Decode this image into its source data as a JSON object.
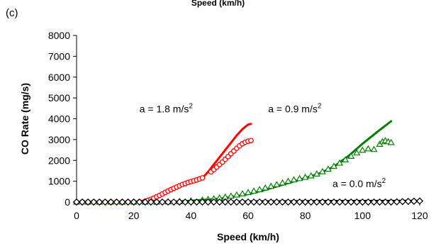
{
  "figure": {
    "top_title": "Speed (km/h)",
    "panel_label": "(c)"
  },
  "chart_data": {
    "type": "scatter",
    "title": "",
    "xlabel": "Speed (km/h)",
    "ylabel": "CO Rate (mg/s)",
    "xlim": [
      0,
      120
    ],
    "ylim": [
      0,
      8000
    ],
    "xticks": [
      0,
      20,
      40,
      60,
      80,
      100,
      120
    ],
    "yticks": [
      0,
      1000,
      2000,
      3000,
      4000,
      5000,
      6000,
      7000,
      8000
    ],
    "grid": false,
    "legend": "none",
    "annotations": [
      {
        "text": "a = 1.8 m/s",
        "sup": "2",
        "x": 22,
        "y": 4300
      },
      {
        "text": "a = 0.9 m/s",
        "sup": "2",
        "x": 67,
        "y": 4300
      },
      {
        "text": "a = 0.0 m/s",
        "sup": "2",
        "x": 89.5,
        "y": 720
      }
    ],
    "series": [
      {
        "label": "a = 1.8 m/s2 model",
        "style": "line",
        "color": "#ff0000",
        "x": [
          0,
          20,
          24,
          28,
          32,
          36,
          40,
          42,
          44,
          46,
          48,
          50,
          52,
          54,
          56,
          58,
          60,
          61
        ],
        "y": [
          0,
          0,
          70,
          230,
          480,
          740,
          960,
          1060,
          1150,
          1450,
          1800,
          2150,
          2500,
          2850,
          3200,
          3500,
          3720,
          3750
        ]
      },
      {
        "label": "a = 1.8 m/s2 data",
        "style": "circle",
        "color": "#ff0000",
        "x": [
          0,
          2,
          4,
          6,
          8,
          10,
          12,
          14,
          16,
          18,
          20,
          22,
          24,
          25,
          26,
          27,
          28,
          29,
          30,
          31,
          32,
          33,
          34,
          35,
          36,
          37,
          38,
          39,
          40,
          41,
          42,
          43,
          44,
          47,
          48,
          49,
          50,
          51,
          52,
          53,
          54,
          55,
          56,
          57,
          58,
          59,
          60,
          61
        ],
        "y": [
          0,
          0,
          0,
          0,
          0,
          0,
          0,
          0,
          0,
          0,
          0,
          10,
          40,
          80,
          130,
          190,
          250,
          320,
          390,
          460,
          530,
          600,
          660,
          720,
          780,
          840,
          890,
          940,
          980,
          1020,
          1060,
          1110,
          1160,
          1450,
          1560,
          1680,
          1800,
          1920,
          2050,
          2180,
          2320,
          2450,
          2580,
          2700,
          2800,
          2870,
          2920,
          2950
        ]
      },
      {
        "label": "a = 0.9 m/s2 model",
        "style": "line",
        "color": "#008000",
        "x": [
          0,
          30,
          40,
          50,
          60,
          65,
          70,
          75,
          80,
          85,
          90,
          95,
          100,
          105,
          110
        ],
        "y": [
          0,
          0,
          60,
          160,
          380,
          550,
          750,
          950,
          1150,
          1380,
          1700,
          2200,
          2800,
          3350,
          3880
        ]
      },
      {
        "label": "a = 0.9 m/s2 data",
        "style": "triangle",
        "color": "#008000",
        "x": [
          0,
          4,
          8,
          12,
          16,
          20,
          24,
          28,
          32,
          36,
          40,
          44,
          46,
          48,
          50,
          52,
          54,
          56,
          58,
          60,
          62,
          64,
          66,
          68,
          70,
          72,
          74,
          76,
          78,
          80,
          82,
          84,
          86,
          88,
          90,
          92,
          94,
          96,
          98,
          100,
          102,
          104,
          106,
          107,
          108,
          109,
          110
        ],
        "y": [
          0,
          0,
          0,
          0,
          0,
          0,
          0,
          0,
          10,
          30,
          60,
          100,
          130,
          160,
          200,
          240,
          290,
          340,
          400,
          460,
          530,
          600,
          680,
          760,
          840,
          920,
          1000,
          1070,
          1130,
          1190,
          1260,
          1350,
          1460,
          1580,
          1720,
          1870,
          2030,
          2200,
          2360,
          2490,
          2560,
          2530,
          2780,
          2900,
          2950,
          2900,
          2860
        ]
      },
      {
        "label": "a = 0.0 m/s2 model",
        "style": "line",
        "color": "#000000",
        "x": [
          0,
          120
        ],
        "y": [
          0,
          60
        ]
      },
      {
        "label": "a = 0.0 m/s2 data",
        "style": "diamond",
        "color": "#000000",
        "x": [
          0,
          2,
          4,
          6,
          8,
          10,
          12,
          14,
          16,
          18,
          20,
          22,
          24,
          26,
          28,
          30,
          32,
          34,
          36,
          38,
          40,
          42,
          44,
          46,
          48,
          50,
          52,
          54,
          56,
          58,
          60,
          62,
          64,
          66,
          68,
          70,
          72,
          74,
          76,
          78,
          80,
          82,
          84,
          86,
          88,
          90,
          92,
          94,
          96,
          98,
          100,
          102,
          104,
          106,
          108,
          110,
          112,
          114,
          116,
          118,
          120
        ],
        "y": [
          0,
          0,
          0,
          0,
          0,
          0,
          0,
          0,
          0,
          0,
          0,
          0,
          0,
          0,
          0,
          0,
          0,
          0,
          0,
          0,
          0,
          0,
          0,
          0,
          0,
          0,
          0,
          0,
          0,
          0,
          0,
          0,
          0,
          0,
          0,
          0,
          0,
          0,
          0,
          0,
          0,
          0,
          0,
          0,
          0,
          0,
          0,
          0,
          0,
          0,
          0,
          0,
          0,
          0,
          0,
          0,
          10,
          20,
          30,
          40,
          50
        ]
      }
    ]
  }
}
